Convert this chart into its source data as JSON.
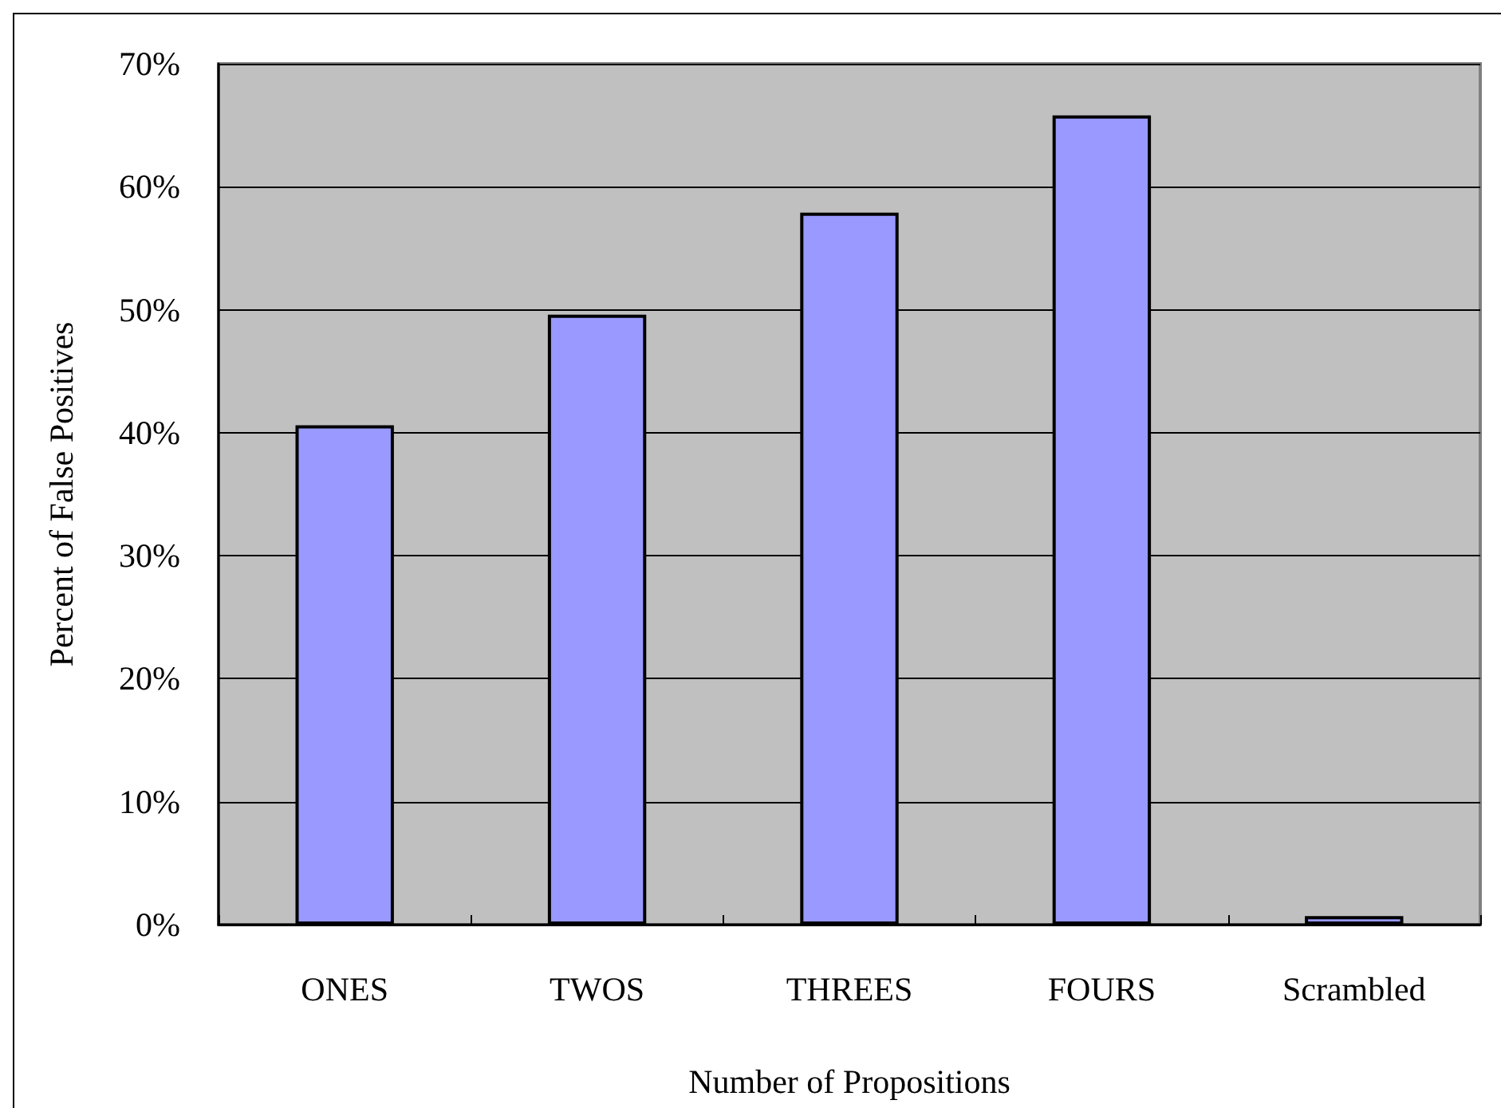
{
  "chart_data": {
    "type": "bar",
    "xlabel": "Number of Propositions",
    "ylabel": "Percent of False Positives",
    "categories": [
      "ONES",
      "TWOS",
      "THREES",
      "FOURS",
      "Scrambled"
    ],
    "values": [
      40.6,
      49.6,
      57.9,
      65.8,
      0.7
    ],
    "color": "#9999ff",
    "ylim": [
      0,
      70
    ],
    "yticks": [
      {
        "value": 0,
        "label": "0%"
      },
      {
        "value": 10,
        "label": "10%"
      },
      {
        "value": 20,
        "label": "20%"
      },
      {
        "value": 30,
        "label": "30%"
      },
      {
        "value": 40,
        "label": "40%"
      },
      {
        "value": 50,
        "label": "50%"
      },
      {
        "value": 60,
        "label": "60%"
      },
      {
        "value": 70,
        "label": "70%"
      }
    ],
    "grid": "y"
  }
}
